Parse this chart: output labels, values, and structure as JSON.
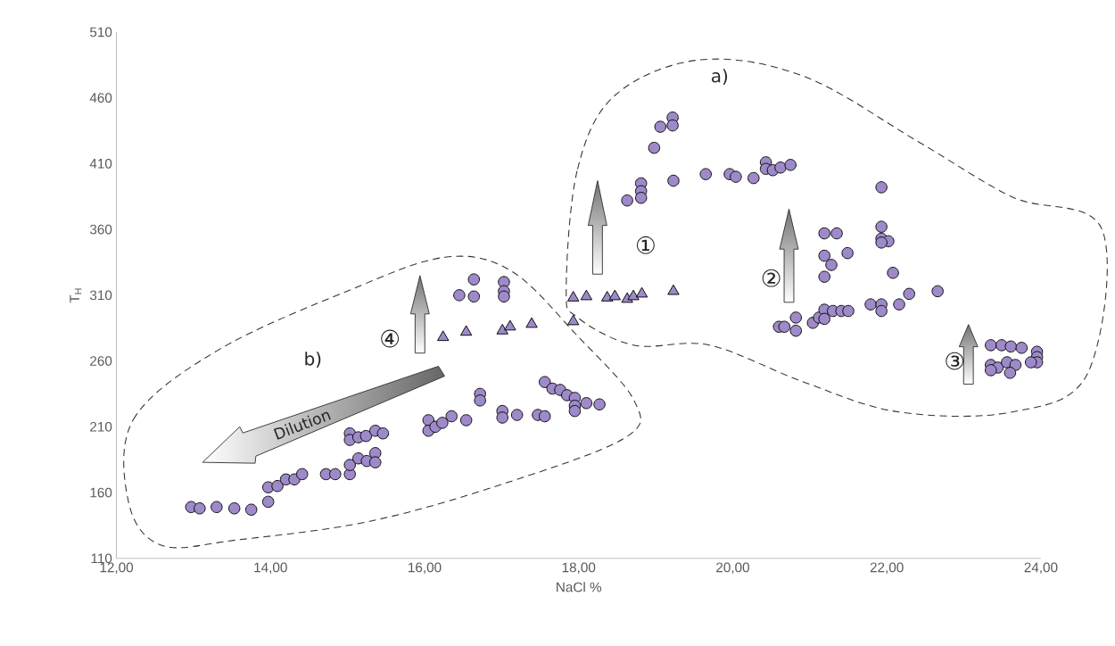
{
  "chart_data": {
    "type": "scatter",
    "xlabel": "NaCl %",
    "ylabel": "T$_{H}$",
    "xlim": [
      12,
      24
    ],
    "ylim": [
      110,
      510
    ],
    "xticks": [
      {
        "value": 12,
        "label": "12,00"
      },
      {
        "value": 14,
        "label": "14,00"
      },
      {
        "value": 16,
        "label": "16,00"
      },
      {
        "value": 18,
        "label": "18,00"
      },
      {
        "value": 20,
        "label": "20,00"
      },
      {
        "value": 22,
        "label": "22,00"
      },
      {
        "value": 24,
        "label": "24,00"
      }
    ],
    "yticks": [
      110,
      160,
      210,
      260,
      310,
      360,
      410,
      460,
      510
    ],
    "series": [
      {
        "color": "#9e8ac8",
        "marker": "circle",
        "x": [
          12.97,
          13.08,
          13.3,
          13.53,
          13.75,
          13.97,
          13.97,
          14.09,
          14.2,
          14.31,
          14.41,
          14.72,
          14.84,
          15.03,
          15.03,
          15.14,
          15.25,
          15.36,
          15.36,
          15.03,
          15.03,
          15.14,
          15.24,
          15.36,
          15.46,
          16.05,
          16.05,
          16.14,
          16.23,
          16.35,
          16.54,
          16.72,
          16.72,
          17.01,
          17.01,
          17.2,
          17.47,
          17.56,
          17.56,
          17.66,
          17.76,
          17.85,
          17.95,
          17.95,
          17.95,
          18.1,
          18.27,
          16.64,
          16.45,
          16.64,
          17.03,
          17.03,
          17.03,
          18.63,
          18.81,
          18.81,
          18.81,
          19.23,
          19.65,
          18.98,
          19.06,
          19.22,
          19.22,
          19.96,
          20.04,
          20.27,
          20.43,
          20.43,
          20.52,
          20.62,
          20.75,
          21.93,
          21.19,
          21.35,
          21.19,
          21.28,
          21.19,
          21.49,
          21.93,
          21.93,
          22.02,
          21.93,
          22.08,
          20.6,
          20.67,
          20.82,
          20.82,
          21.04,
          21.12,
          21.19,
          21.19,
          21.3,
          21.41,
          21.5,
          21.79,
          21.93,
          21.93,
          22.16,
          22.29,
          22.66,
          23.35,
          23.49,
          23.61,
          23.75,
          23.35,
          23.44,
          23.56,
          23.67,
          23.6,
          23.95,
          23.95,
          23.95,
          23.87,
          23.35
        ],
        "values": [
          149,
          148,
          149,
          148,
          147,
          153,
          164,
          165,
          170,
          170,
          174,
          174,
          174,
          174,
          181,
          186,
          184,
          190,
          183,
          205,
          200,
          202,
          203,
          207,
          205,
          215,
          207,
          210,
          213,
          218,
          215,
          235,
          230,
          222,
          217,
          219,
          219,
          218,
          244,
          239,
          238,
          234,
          232,
          226,
          222,
          228,
          227,
          322,
          310,
          309,
          320,
          313,
          309,
          382,
          395,
          389,
          384,
          397,
          402,
          422,
          438,
          445,
          439,
          402,
          400,
          399,
          411,
          406,
          405,
          407,
          409,
          392,
          357,
          357,
          340,
          333,
          324,
          342,
          362,
          353,
          351,
          350,
          327,
          286,
          286,
          293,
          283,
          289,
          293,
          299,
          292,
          298,
          298,
          298,
          303,
          303,
          298,
          303,
          311,
          313,
          272,
          272,
          271,
          270,
          257,
          255,
          259,
          257,
          251,
          267,
          263,
          259,
          259,
          253
        ]
      },
      {
        "color": "#9e8ac8",
        "marker": "triangle",
        "x": [
          16.24,
          16.54,
          17.01,
          17.11,
          17.39,
          17.93,
          17.93,
          18.1,
          18.37,
          18.47,
          18.63,
          18.71,
          18.82,
          19.23
        ],
        "values": [
          278,
          282,
          283,
          286,
          288,
          290,
          308,
          309,
          308,
          309,
          307,
          309,
          311,
          313
        ]
      }
    ],
    "annotations": [
      "a)",
      "b)",
      "①",
      "②",
      "③",
      "④",
      "Dilution"
    ]
  }
}
